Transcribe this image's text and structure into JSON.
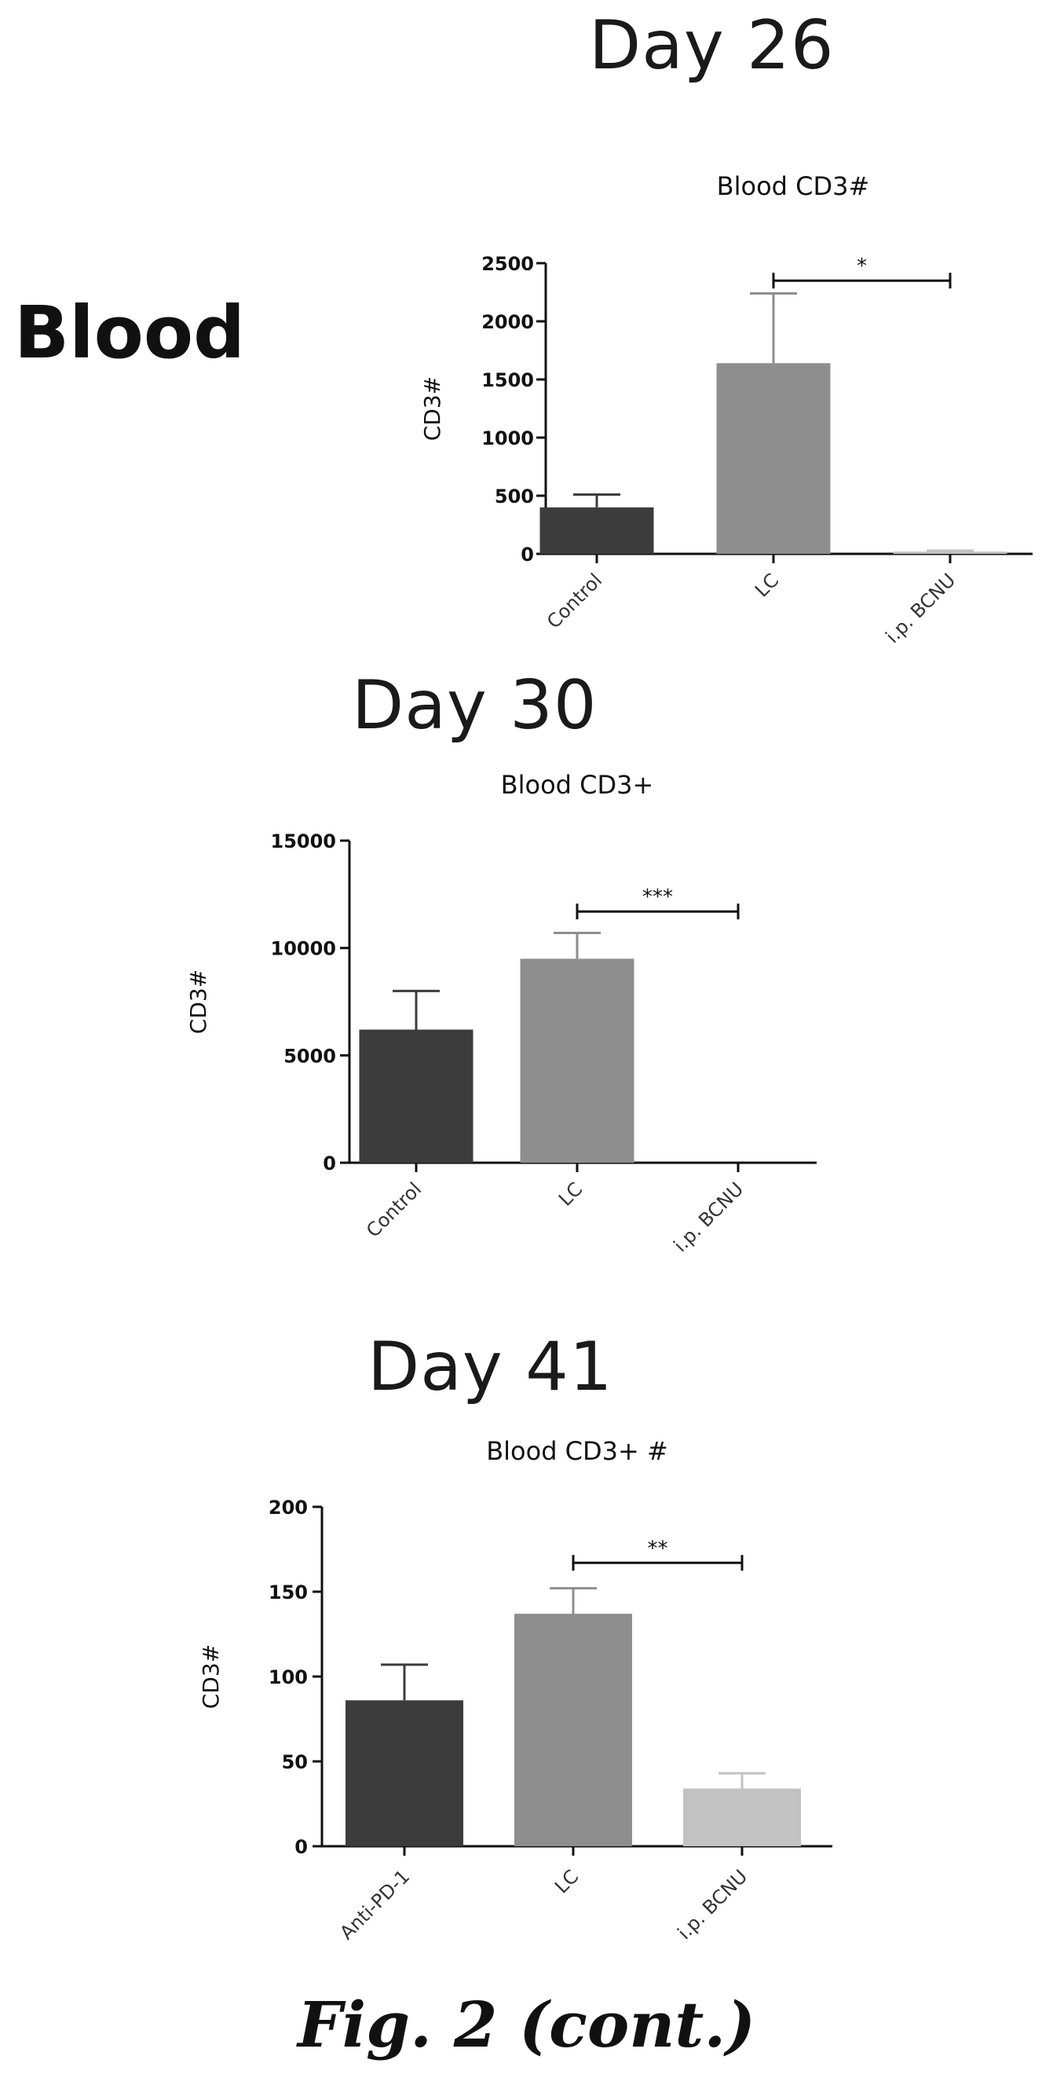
{
  "section_label": "Blood",
  "caption": "Fig. 2 (cont.)",
  "chart_data": [
    {
      "type": "bar",
      "day_title": "Day 26",
      "title": "Blood CD3#",
      "ylabel": "CD3#",
      "categories": [
        "Control",
        "LC",
        "i.p. BCNU"
      ],
      "values": [
        400,
        1640,
        20
      ],
      "errors": [
        110,
        600,
        8
      ],
      "ylim": [
        0,
        2500
      ],
      "yticks": [
        0,
        500,
        1000,
        1500,
        2000,
        2500
      ],
      "ytick_labels": [
        "0",
        "500",
        "1000",
        "1500",
        "2000",
        "2500"
      ],
      "bar_colors": [
        "#3c3c3c",
        "#8e8e8e",
        "#c2c2c2"
      ],
      "significance": {
        "from": 1,
        "to": 2,
        "label": "*",
        "y": 2350
      }
    },
    {
      "type": "bar",
      "day_title": "Day 30",
      "title": "Blood CD3+",
      "ylabel": "CD3#",
      "categories": [
        "Control",
        "LC",
        "i.p. BCNU"
      ],
      "values": [
        6200,
        9500,
        0
      ],
      "errors": [
        1800,
        1200,
        0
      ],
      "ylim": [
        0,
        15000
      ],
      "yticks": [
        0,
        5000,
        10000,
        15000
      ],
      "ytick_labels": [
        "0",
        "5000",
        "10000",
        "15000"
      ],
      "bar_colors": [
        "#3c3c3c",
        "#8e8e8e",
        "#c2c2c2"
      ],
      "significance": {
        "from": 1,
        "to": 2,
        "label": "***",
        "y": 11700
      }
    },
    {
      "type": "bar",
      "day_title": "Day 41",
      "title": "Blood CD3+ #",
      "ylabel": "CD3#",
      "categories": [
        "Anti-PD-1",
        "LC",
        "i.p. BCNU"
      ],
      "values": [
        86,
        137,
        34
      ],
      "errors": [
        21,
        15,
        9
      ],
      "ylim": [
        0,
        200
      ],
      "yticks": [
        0,
        50,
        100,
        150,
        200
      ],
      "ytick_labels": [
        "0",
        "50",
        "100",
        "150",
        "200"
      ],
      "bar_colors": [
        "#3c3c3c",
        "#8e8e8e",
        "#c2c2c2"
      ],
      "significance": {
        "from": 1,
        "to": 2,
        "label": "**",
        "y": 167
      }
    }
  ]
}
